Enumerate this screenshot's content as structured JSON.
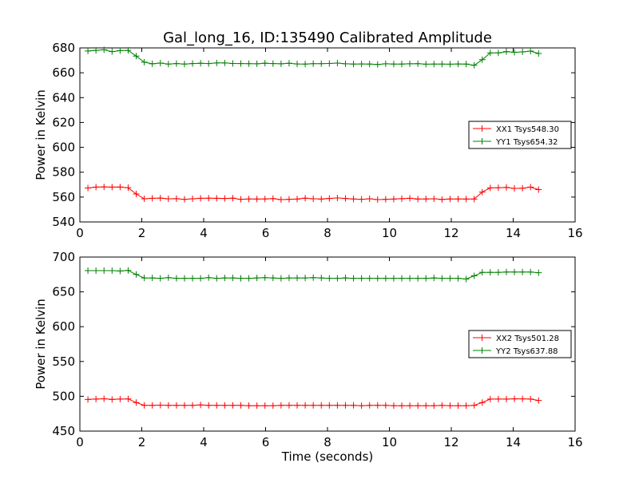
{
  "figure": {
    "title": "Gal_long_16, ID:135490 Calibrated Amplitude",
    "background": "#ffffff"
  },
  "chart_data": [
    {
      "type": "line",
      "title": "Gal_long_16, ID:135490 Calibrated Amplitude",
      "xlabel": "",
      "ylabel": "Power in Kelvin",
      "xlim": [
        0,
        16
      ],
      "ylim": [
        540,
        680
      ],
      "xticks": [
        0,
        2,
        4,
        6,
        8,
        10,
        12,
        14,
        16
      ],
      "yticks": [
        540,
        560,
        580,
        600,
        620,
        640,
        660,
        680
      ],
      "grid": false,
      "legend_position": "center-right",
      "marker": "plus",
      "x": [
        0.26,
        0.52,
        0.78,
        1.04,
        1.3,
        1.56,
        1.82,
        2.08,
        2.34,
        2.6,
        2.86,
        3.12,
        3.38,
        3.64,
        3.9,
        4.16,
        4.42,
        4.68,
        4.94,
        5.2,
        5.46,
        5.72,
        5.98,
        6.24,
        6.5,
        6.76,
        7.02,
        7.28,
        7.54,
        7.8,
        8.06,
        8.32,
        8.58,
        8.84,
        9.1,
        9.36,
        9.62,
        9.88,
        10.14,
        10.4,
        10.66,
        10.92,
        11.18,
        11.44,
        11.7,
        11.96,
        12.22,
        12.48,
        12.74,
        13.0,
        13.26,
        13.52,
        13.78,
        14.04,
        14.3,
        14.56,
        14.82
      ],
      "series": [
        {
          "name": "XX1 Tsys548.30",
          "color": "#ff0000",
          "values": [
            567.3,
            568.0,
            568.2,
            568.0,
            568.1,
            567.5,
            562.5,
            558.6,
            559.0,
            559.2,
            558.6,
            558.7,
            558.2,
            558.6,
            559.0,
            559.1,
            559.0,
            558.9,
            559.1,
            558.2,
            558.5,
            558.4,
            558.5,
            558.8,
            558.0,
            558.2,
            558.4,
            559.1,
            558.6,
            558.4,
            558.9,
            559.3,
            558.9,
            558.5,
            558.2,
            558.6,
            558.0,
            558.2,
            558.4,
            558.7,
            559.0,
            558.4,
            558.5,
            558.6,
            558.1,
            558.5,
            558.5,
            558.4,
            558.4,
            564.0,
            567.4,
            567.5,
            567.8,
            567.0,
            567.1,
            568.0,
            566.0
          ]
        },
        {
          "name": "YY1 Tsys654.32",
          "color": "#008000",
          "values": [
            677.5,
            678.0,
            678.5,
            677.0,
            677.8,
            678.0,
            673.4,
            668.5,
            667.2,
            667.8,
            667.0,
            667.4,
            667.0,
            667.4,
            667.6,
            667.4,
            667.9,
            667.9,
            667.5,
            667.4,
            667.3,
            667.2,
            667.7,
            667.4,
            667.2,
            667.6,
            667.1,
            667.0,
            667.3,
            667.3,
            667.5,
            667.8,
            667.2,
            667.0,
            667.1,
            667.0,
            666.7,
            667.2,
            667.0,
            667.0,
            667.2,
            667.3,
            666.9,
            667.0,
            667.0,
            666.9,
            667.1,
            667.0,
            666.0,
            670.5,
            676.0,
            676.0,
            677.0,
            676.5,
            676.8,
            677.4,
            675.5
          ]
        }
      ]
    },
    {
      "type": "line",
      "title": "",
      "xlabel": "Time (seconds)",
      "ylabel": "Power in Kelvin",
      "xlim": [
        0,
        16
      ],
      "ylim": [
        450,
        700
      ],
      "xticks": [
        0,
        2,
        4,
        6,
        8,
        10,
        12,
        14,
        16
      ],
      "yticks": [
        450,
        500,
        550,
        600,
        650,
        700
      ],
      "grid": false,
      "legend_position": "center-right",
      "marker": "plus",
      "x": [
        0.26,
        0.52,
        0.78,
        1.04,
        1.3,
        1.56,
        1.82,
        2.08,
        2.34,
        2.6,
        2.86,
        3.12,
        3.38,
        3.64,
        3.9,
        4.16,
        4.42,
        4.68,
        4.94,
        5.2,
        5.46,
        5.72,
        5.98,
        6.24,
        6.5,
        6.76,
        7.02,
        7.28,
        7.54,
        7.8,
        8.06,
        8.32,
        8.58,
        8.84,
        9.1,
        9.36,
        9.62,
        9.88,
        10.14,
        10.4,
        10.66,
        10.92,
        11.18,
        11.44,
        11.7,
        11.96,
        12.22,
        12.48,
        12.74,
        13.0,
        13.26,
        13.52,
        13.78,
        14.04,
        14.3,
        14.56,
        14.82
      ],
      "series": [
        {
          "name": "XX2 Tsys501.28",
          "color": "#ff0000",
          "values": [
            495.5,
            496.0,
            496.5,
            495.5,
            496.0,
            496.2,
            491.0,
            487.0,
            487.0,
            487.3,
            487.0,
            487.0,
            487.0,
            487.0,
            487.5,
            487.0,
            487.0,
            487.0,
            487.0,
            487.0,
            486.5,
            486.5,
            486.5,
            486.5,
            487.0,
            487.0,
            487.0,
            487.0,
            487.0,
            487.0,
            487.0,
            487.0,
            487.0,
            487.0,
            486.5,
            487.0,
            487.0,
            487.0,
            486.5,
            486.5,
            486.5,
            486.5,
            486.5,
            486.5,
            487.0,
            486.5,
            486.5,
            486.5,
            487.0,
            491.0,
            496.0,
            496.0,
            496.0,
            496.3,
            496.3,
            496.0,
            494.0
          ]
        },
        {
          "name": "YY2 Tsys637.88",
          "color": "#008000",
          "values": [
            680.5,
            680.5,
            680.5,
            680.5,
            680.0,
            680.8,
            675.0,
            670.0,
            670.0,
            669.5,
            670.5,
            669.5,
            669.5,
            669.5,
            669.5,
            670.5,
            669.5,
            670.0,
            670.0,
            669.5,
            669.5,
            670.0,
            670.5,
            670.0,
            669.5,
            670.0,
            670.0,
            670.0,
            670.5,
            670.0,
            669.5,
            669.5,
            670.0,
            669.5,
            669.5,
            669.5,
            669.5,
            669.5,
            669.5,
            669.5,
            669.5,
            669.5,
            669.5,
            670.0,
            669.5,
            669.5,
            669.5,
            668.5,
            673.0,
            678.0,
            678.0,
            678.0,
            678.5,
            678.5,
            678.5,
            678.5,
            677.5
          ]
        }
      ]
    }
  ]
}
